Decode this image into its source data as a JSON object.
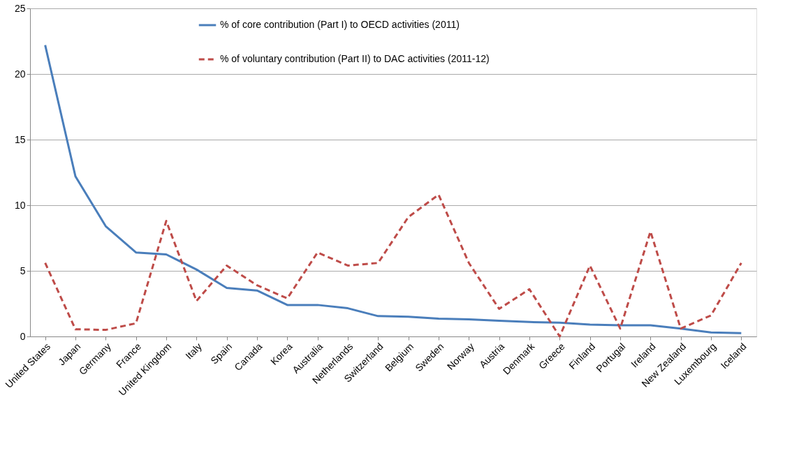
{
  "chart_data": {
    "type": "line",
    "categories": [
      "United States",
      "Japan",
      "Germany",
      "France",
      "United Kingdom",
      "Italy",
      "Spain",
      "Canada",
      "Korea",
      "Australia",
      "Netherlands",
      "Switzerland",
      "Belgium",
      "Sweden",
      "Norway",
      "Austria",
      "Denmark",
      "Greece",
      "Finland",
      "Portugal",
      "Ireland",
      "New Zealand",
      "Luxembourg",
      "Iceland"
    ],
    "series": [
      {
        "name": "% of core contribution (Part I) to OECD activities (2011)",
        "color": "#4a7ebb",
        "line_style": "solid",
        "values": [
          22.2,
          12.2,
          8.4,
          6.4,
          6.25,
          5.1,
          3.7,
          3.5,
          2.4,
          2.4,
          2.15,
          1.55,
          1.5,
          1.35,
          1.3,
          1.2,
          1.1,
          1.05,
          0.9,
          0.85,
          0.85,
          0.6,
          0.3,
          0.25
        ]
      },
      {
        "name": "% of voluntary contribution (Part II) to DAC activities (2011-12)",
        "color": "#be4b48",
        "line_style": "dashed",
        "values": [
          5.6,
          0.55,
          0.5,
          1.0,
          8.8,
          2.7,
          5.4,
          3.9,
          2.9,
          6.4,
          5.4,
          5.6,
          9.1,
          10.8,
          5.6,
          2.1,
          3.6,
          0.0,
          5.4,
          0.6,
          8.0,
          0.6,
          1.6,
          5.6
        ]
      }
    ],
    "ylim": [
      0,
      25
    ],
    "yticks": [
      0,
      5,
      10,
      15,
      20,
      25
    ],
    "grid": "y",
    "legend": "top",
    "marker": "none"
  }
}
